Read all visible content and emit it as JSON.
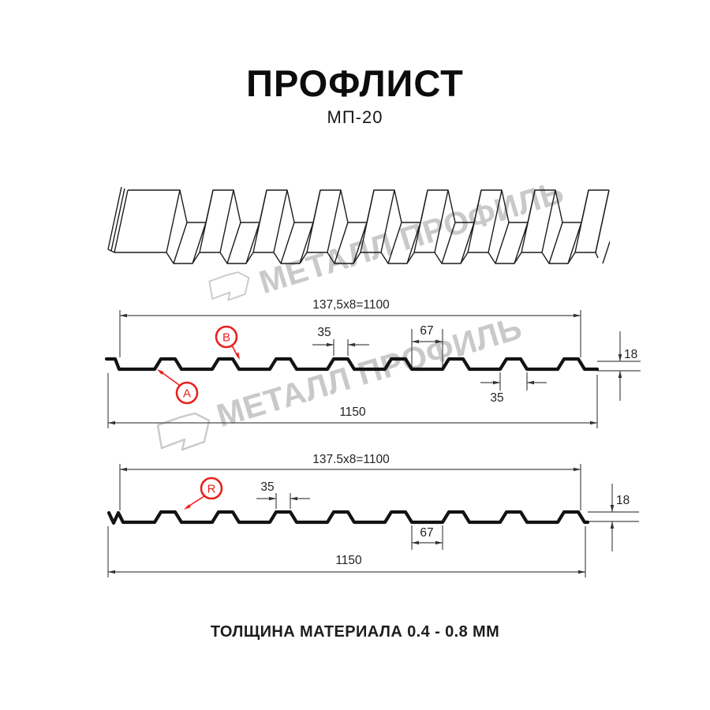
{
  "title": "ПРОФЛИСТ",
  "subtitle": "МП-20",
  "footer": "ТОЛЩИНА МАТЕРИАЛА 0.4 - 0.8 ММ",
  "watermark": {
    "brand": "МЕТАЛЛ ПРОФИЛЬ"
  },
  "colors": {
    "accent_red": "#e8211d",
    "drawing_line": "#131313",
    "dimension_line": "#4a4a4a",
    "watermark_gray": "#c9c9c9",
    "background": "#ffffff"
  },
  "section_a": {
    "working_width": "137,5x8=1100",
    "crest_top_width": "35",
    "valley_width": "67",
    "profile_height": "18",
    "crest_base_width": "35",
    "overall_width": "1150",
    "labels": {
      "a": "A",
      "b": "B"
    }
  },
  "section_r": {
    "working_width": "137.5x8=1100",
    "crest_top_width": "35",
    "valley_width": "67",
    "profile_height": "18",
    "overall_width": "1150",
    "labels": {
      "r": "R"
    }
  }
}
